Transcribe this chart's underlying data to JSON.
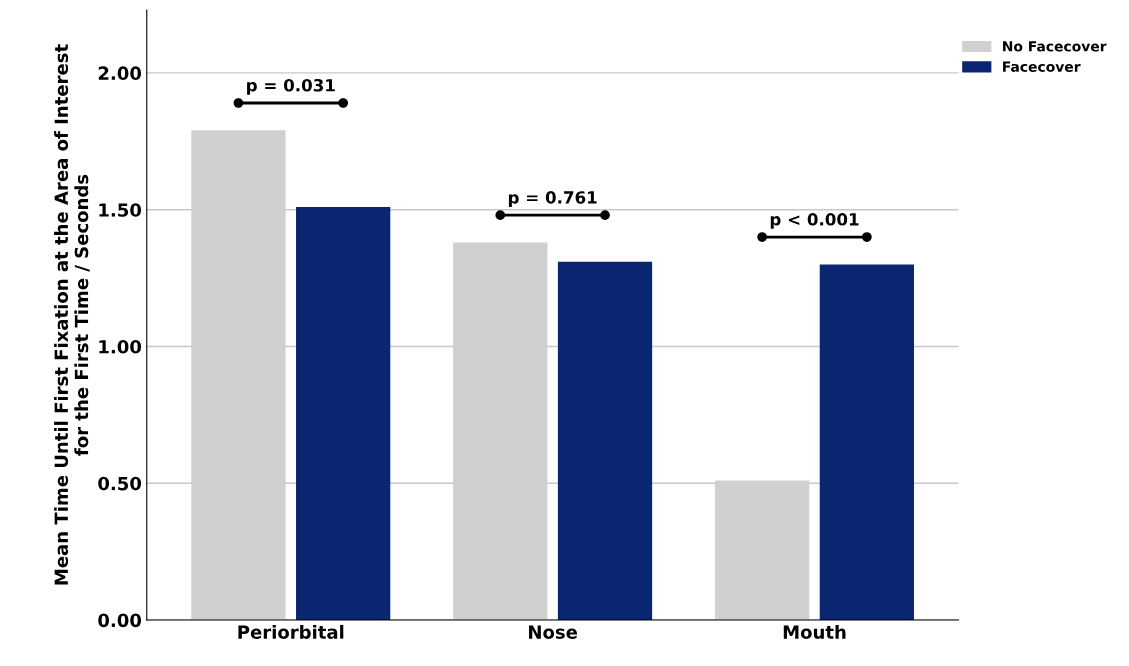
{
  "chart_data": {
    "type": "bar",
    "ylabel": "Mean Time Until First Fixation at the Area of Interest\nfor the First Time / Seconds",
    "categories": [
      "Periorbital",
      "Nose",
      "Mouth"
    ],
    "series": [
      {
        "name": "No Facecover",
        "color": "#d0d0d0",
        "values": [
          1.79,
          1.38,
          0.51
        ]
      },
      {
        "name": "Facecover",
        "color": "#0b2670",
        "values": [
          1.51,
          1.31,
          1.3
        ]
      }
    ],
    "ylim": [
      0,
      2.23
    ],
    "yticks": [
      {
        "value": 0,
        "label": "0.00"
      },
      {
        "value": 0.5,
        "label": "0.50"
      },
      {
        "value": 1,
        "label": "1.00"
      },
      {
        "value": 1.5,
        "label": "1.50"
      },
      {
        "value": 2,
        "label": "2.00"
      }
    ],
    "grid": "y",
    "legend": "top right",
    "annotations": [
      "p = 0.031",
      "p = 0.761",
      "p < 0.001"
    ]
  }
}
